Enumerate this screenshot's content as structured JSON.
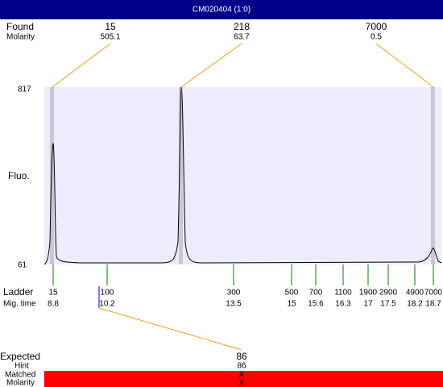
{
  "header": {
    "title": "CM020404 (1:0)"
  },
  "found": {
    "label": "Found",
    "molarity_label": "Molarity",
    "peaks": [
      {
        "size": "15",
        "molarity": "505.1"
      },
      {
        "size": "218",
        "molarity": "63.7"
      },
      {
        "size": "7000",
        "molarity": "0.5"
      }
    ]
  },
  "plot": {
    "y_max": "817",
    "y_min": "61",
    "y_label": "Fluo."
  },
  "ladder": {
    "label": "Ladder",
    "mig_label": "Mig. time",
    "bands": [
      {
        "size": "15",
        "time": "8.8"
      },
      {
        "size": "100",
        "time": "10.2"
      },
      {
        "size": "300",
        "time": "13.5"
      },
      {
        "size": "500",
        "time": "15"
      },
      {
        "size": "700",
        "time": "15.6"
      },
      {
        "size": "1100",
        "time": "16.3"
      },
      {
        "size": "1900",
        "time": "17"
      },
      {
        "size": "2900",
        "time": "17.5"
      },
      {
        "size": "4900",
        "time": "18.2"
      },
      {
        "size": "7000",
        "time": "18.7"
      }
    ]
  },
  "expected": {
    "label": "Expected",
    "value": "86",
    "hint_label": "Hint",
    "hint": "86",
    "matched_label": "Matched",
    "matched": "X",
    "molarity_label": "Molarity",
    "molarity": "X"
  }
}
